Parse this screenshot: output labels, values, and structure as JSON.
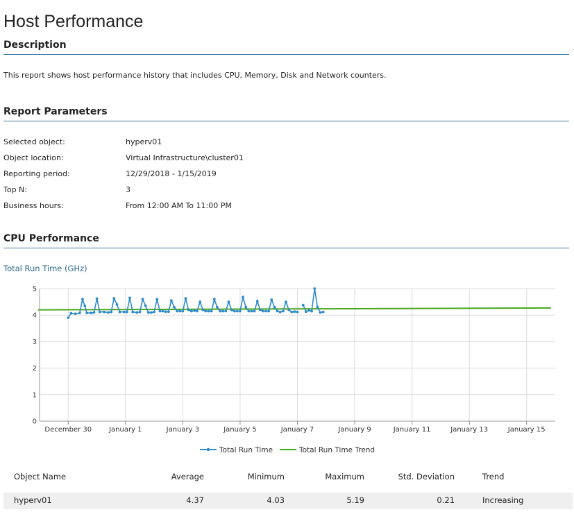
{
  "page": {
    "title": "Host Performance"
  },
  "description": {
    "heading": "Description",
    "text": "This report shows host performance history that includes CPU, Memory, Disk and Network counters."
  },
  "parameters": {
    "heading": "Report Parameters",
    "rows": [
      {
        "label": "Selected object:",
        "value": "hyperv01"
      },
      {
        "label": "Object location:",
        "value": "Virtual Infrastructure\\cluster01"
      },
      {
        "label": "Reporting period:",
        "value": "12/29/2018 - 1/15/2019"
      },
      {
        "label": "Top N:",
        "value": "3"
      },
      {
        "label": "Business hours:",
        "value": "From 12:00 AM To 11:00 PM"
      }
    ]
  },
  "cpu": {
    "heading": "CPU Performance",
    "subtitle": "Total Run Time (GHz)"
  },
  "colors": {
    "run_time": "#2e8bc9",
    "trend": "#4aa619",
    "rule": "#3e7aa7",
    "subtitle": "#2a6a8e"
  },
  "chart_data": {
    "type": "line",
    "ylim": [
      0,
      5
    ],
    "y_ticks": [
      "0",
      "1",
      "2",
      "3",
      "4",
      "5"
    ],
    "x_ticks": [
      {
        "label": "December 30",
        "day": 1
      },
      {
        "label": "January 1",
        "day": 3
      },
      {
        "label": "January 3",
        "day": 5
      },
      {
        "label": "January 5",
        "day": 7
      },
      {
        "label": "January 7",
        "day": 9
      },
      {
        "label": "January 9",
        "day": 11
      },
      {
        "label": "January 11",
        "day": 13
      },
      {
        "label": "January 13",
        "day": 15
      },
      {
        "label": "January 15",
        "day": 17
      }
    ],
    "x_range_days": [
      0,
      18
    ],
    "grid": true,
    "legend": "bottom",
    "series": [
      {
        "name": "Total Run Time",
        "segments": [
          [
            [
              1.0,
              3.9
            ],
            [
              1.1,
              4.07
            ],
            [
              1.25,
              4.05
            ],
            [
              1.4,
              4.08
            ],
            [
              1.5,
              4.6
            ],
            [
              1.58,
              4.35
            ],
            [
              1.65,
              4.08
            ],
            [
              1.8,
              4.08
            ],
            [
              1.9,
              4.1
            ],
            [
              2.0,
              4.62
            ],
            [
              2.1,
              4.12
            ],
            [
              2.25,
              4.12
            ],
            [
              2.4,
              4.1
            ],
            [
              2.5,
              4.12
            ],
            [
              2.6,
              4.63
            ],
            [
              2.7,
              4.4
            ],
            [
              2.8,
              4.12
            ],
            [
              2.95,
              4.12
            ],
            [
              3.05,
              4.12
            ],
            [
              3.15,
              4.65
            ],
            [
              3.25,
              4.12
            ],
            [
              3.4,
              4.1
            ],
            [
              3.5,
              4.12
            ],
            [
              3.6,
              4.6
            ],
            [
              3.7,
              4.35
            ],
            [
              3.8,
              4.1
            ],
            [
              3.9,
              4.1
            ],
            [
              4.0,
              4.12
            ],
            [
              4.1,
              4.6
            ],
            [
              4.2,
              4.15
            ],
            [
              4.3,
              4.15
            ],
            [
              4.4,
              4.13
            ],
            [
              4.5,
              4.13
            ],
            [
              4.6,
              4.55
            ],
            [
              4.7,
              4.3
            ],
            [
              4.8,
              4.15
            ],
            [
              4.9,
              4.15
            ],
            [
              5.0,
              4.15
            ],
            [
              5.1,
              4.63
            ],
            [
              5.2,
              4.2
            ],
            [
              5.3,
              4.15
            ],
            [
              5.4,
              4.17
            ],
            [
              5.5,
              4.15
            ],
            [
              5.6,
              4.5
            ],
            [
              5.7,
              4.2
            ],
            [
              5.8,
              4.15
            ],
            [
              5.9,
              4.15
            ],
            [
              6.0,
              4.15
            ],
            [
              6.1,
              4.6
            ],
            [
              6.2,
              4.3
            ],
            [
              6.3,
              4.15
            ],
            [
              6.4,
              4.15
            ],
            [
              6.5,
              4.15
            ],
            [
              6.6,
              4.5
            ],
            [
              6.7,
              4.2
            ],
            [
              6.8,
              4.15
            ],
            [
              6.9,
              4.15
            ],
            [
              7.0,
              4.15
            ],
            [
              7.1,
              4.68
            ],
            [
              7.2,
              4.3
            ],
            [
              7.3,
              4.15
            ],
            [
              7.4,
              4.15
            ],
            [
              7.5,
              4.15
            ],
            [
              7.6,
              4.53
            ],
            [
              7.7,
              4.2
            ],
            [
              7.8,
              4.15
            ],
            [
              7.9,
              4.15
            ],
            [
              8.0,
              4.15
            ],
            [
              8.1,
              4.58
            ],
            [
              8.2,
              4.3
            ],
            [
              8.3,
              4.15
            ],
            [
              8.4,
              4.12
            ],
            [
              8.5,
              4.15
            ],
            [
              8.6,
              4.5
            ],
            [
              8.7,
              4.2
            ],
            [
              8.8,
              4.12
            ],
            [
              8.9,
              4.13
            ],
            [
              9.0,
              4.12
            ]
          ],
          [
            [
              9.2,
              4.38
            ],
            [
              9.3,
              4.13
            ],
            [
              9.4,
              4.18
            ],
            [
              9.5,
              4.15
            ],
            [
              9.6,
              5.0
            ],
            [
              9.7,
              4.3
            ],
            [
              9.8,
              4.1
            ],
            [
              9.9,
              4.12
            ]
          ]
        ]
      },
      {
        "name": "Total Run Time Trend",
        "points": [
          [
            -0.05,
            4.2
          ],
          [
            17.85,
            4.27
          ]
        ]
      }
    ]
  },
  "table": {
    "columns": [
      "Object Name",
      "Average",
      "Minimum",
      "Maximum",
      "Std. Deviation",
      "Trend"
    ],
    "rows": [
      [
        "hyperv01",
        "4.37",
        "4.03",
        "5.19",
        "0.21",
        "Increasing"
      ]
    ]
  }
}
